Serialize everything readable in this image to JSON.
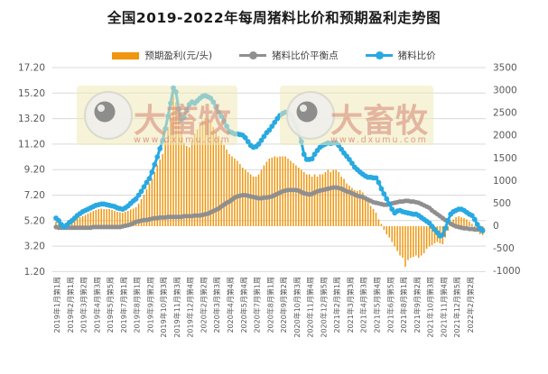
{
  "title": "全国2019-2022年每周猪料比价和预期盈利走势图",
  "legend": {
    "items": [
      {
        "label": "预期盈利(元/头)",
        "type": "bar",
        "color": "#F0960F"
      },
      {
        "label": "猪料比价平衡点",
        "type": "line",
        "color": "#8F8F8F"
      },
      {
        "label": "猪料比价",
        "type": "line",
        "color": "#29A9E1"
      }
    ]
  },
  "watermark": {
    "brand": "大畜牧",
    "url": "www.dxumu.com"
  },
  "chart_data": {
    "type": "combo-bar-line",
    "n_points": 161,
    "x_tick_every": 5,
    "x_tick_labels": [
      "2019年1月第1周",
      "2019年2月第1周",
      "2019年3月第2周",
      "2019年4月第3周",
      "2019年5月第5周",
      "2019年7月第1周",
      "2019年8月第1周",
      "2019年9月第2周",
      "2019年10月第3周",
      "2019年11月第3周",
      "2019年12月第4周",
      "2020年2月第2周",
      "2020年3月第3周",
      "2020年4月第4周",
      "2020年5月第4周",
      "2020年7月第1周",
      "2020年8月第1周",
      "2020年9月第2周",
      "2020年10月第3周",
      "2020年11月第4周",
      "2020年12月第5周",
      "2021年2月第1周",
      "2021年3月第3周",
      "2021年4月第3周",
      "2021年5月第4周",
      "2021年6月第5周",
      "2021年8月第1周",
      "2021年9月第2周",
      "2021年10月第3周",
      "2021年11月第4周",
      "2021年12月第5周",
      "2022年2月第2周"
    ],
    "left_axis": {
      "min": 1.2,
      "max": 17.2,
      "ticks": [
        "17.20",
        "15.20",
        "13.20",
        "11.20",
        "9.20",
        "7.20",
        "5.20",
        "3.20",
        "1.20"
      ]
    },
    "right_axis": {
      "min": -1000,
      "max": 3500,
      "ticks": [
        "3500",
        "3000",
        "2500",
        "2000",
        "1500",
        "1000",
        "500",
        "0",
        "-500",
        "-1000"
      ]
    },
    "grid": true,
    "legend_position": "top",
    "series": [
      {
        "name": "预期盈利(元/头)",
        "type": "bar",
        "axis": "right",
        "color": "#F0960F",
        "values": [
          100,
          60,
          20,
          30,
          80,
          140,
          150,
          170,
          190,
          200,
          220,
          250,
          280,
          310,
          340,
          360,
          380,
          390,
          380,
          380,
          380,
          360,
          340,
          320,
          310,
          300,
          320,
          340,
          370,
          390,
          420,
          500,
          600,
          700,
          820,
          950,
          1050,
          1200,
          1350,
          1480,
          1600,
          1900,
          2200,
          2500,
          2950,
          2750,
          2500,
          2100,
          1850,
          1780,
          1750,
          1900,
          2050,
          2150,
          2250,
          2350,
          2400,
          2380,
          2300,
          2200,
          2100,
          2000,
          1900,
          1800,
          1700,
          1600,
          1550,
          1500,
          1450,
          1380,
          1300,
          1250,
          1200,
          1150,
          1100,
          1100,
          1150,
          1250,
          1350,
          1430,
          1500,
          1520,
          1550,
          1530,
          1550,
          1550,
          1550,
          1500,
          1450,
          1400,
          1350,
          1300,
          1250,
          1200,
          1150,
          1150,
          1100,
          1150,
          1100,
          1150,
          1150,
          1200,
          1250,
          1200,
          1250,
          1250,
          1200,
          1100,
          1050,
          950,
          900,
          850,
          800,
          780,
          800,
          750,
          650,
          550,
          450,
          380,
          300,
          150,
          50,
          -80,
          -180,
          -250,
          -350,
          -450,
          -550,
          -650,
          -700,
          -900,
          -750,
          -700,
          -680,
          -650,
          -700,
          -650,
          -600,
          -500,
          -450,
          -420,
          -380,
          -350,
          -380,
          -400,
          -250,
          -100,
          50,
          150,
          200,
          220,
          200,
          180,
          150,
          100,
          50,
          -50,
          -120,
          -180,
          -200
        ]
      },
      {
        "name": "猪料比价平衡点",
        "type": "line",
        "axis": "left",
        "color": "#8F8F8F",
        "values": [
          4.7,
          4.65,
          4.65,
          4.65,
          4.65,
          4.65,
          4.65,
          4.65,
          4.65,
          4.65,
          4.65,
          4.65,
          4.65,
          4.65,
          4.7,
          4.7,
          4.7,
          4.7,
          4.7,
          4.7,
          4.7,
          4.7,
          4.7,
          4.7,
          4.7,
          4.75,
          4.8,
          4.85,
          4.9,
          5.0,
          5.1,
          5.15,
          5.2,
          5.25,
          5.25,
          5.3,
          5.35,
          5.4,
          5.4,
          5.45,
          5.45,
          5.45,
          5.5,
          5.5,
          5.5,
          5.5,
          5.5,
          5.5,
          5.55,
          5.55,
          5.55,
          5.55,
          5.6,
          5.6,
          5.6,
          5.65,
          5.7,
          5.75,
          5.85,
          5.95,
          6.05,
          6.15,
          6.3,
          6.45,
          6.6,
          6.7,
          6.85,
          7.0,
          7.1,
          7.15,
          7.2,
          7.2,
          7.15,
          7.1,
          7.05,
          7.0,
          6.95,
          6.95,
          7.0,
          7.0,
          7.05,
          7.1,
          7.2,
          7.3,
          7.4,
          7.5,
          7.55,
          7.6,
          7.6,
          7.6,
          7.6,
          7.55,
          7.45,
          7.35,
          7.3,
          7.25,
          7.3,
          7.4,
          7.5,
          7.55,
          7.6,
          7.65,
          7.7,
          7.75,
          7.8,
          7.8,
          7.75,
          7.7,
          7.6,
          7.5,
          7.45,
          7.35,
          7.25,
          7.15,
          7.1,
          7.05,
          6.95,
          6.85,
          6.75,
          6.65,
          6.6,
          6.55,
          6.5,
          6.45,
          6.45,
          6.5,
          6.55,
          6.6,
          6.65,
          6.7,
          6.7,
          6.75,
          6.75,
          6.7,
          6.7,
          6.65,
          6.6,
          6.5,
          6.4,
          6.3,
          6.2,
          6.0,
          5.85,
          5.7,
          5.55,
          5.4,
          5.25,
          5.1,
          4.95,
          4.85,
          4.75,
          4.7,
          4.65,
          4.6,
          4.6,
          4.55,
          4.55,
          4.5,
          4.5,
          4.5,
          4.5
        ]
      },
      {
        "name": "猪料比价",
        "type": "line",
        "axis": "left",
        "color": "#29A9E1",
        "values": [
          5.4,
          5.2,
          4.9,
          4.7,
          4.85,
          5.05,
          5.2,
          5.4,
          5.6,
          5.75,
          5.9,
          6.0,
          6.1,
          6.2,
          6.3,
          6.4,
          6.45,
          6.5,
          6.5,
          6.45,
          6.4,
          6.35,
          6.3,
          6.2,
          6.15,
          6.1,
          6.2,
          6.35,
          6.55,
          6.75,
          6.9,
          7.2,
          7.5,
          7.85,
          8.2,
          8.5,
          9.0,
          9.6,
          10.2,
          10.85,
          11.5,
          12.4,
          13.4,
          14.4,
          15.6,
          15.3,
          14.0,
          13.1,
          13.3,
          13.9,
          14.3,
          14.5,
          14.4,
          14.6,
          14.8,
          14.95,
          15.0,
          14.9,
          14.8,
          14.5,
          14.1,
          13.7,
          13.4,
          13.0,
          12.6,
          12.2,
          12.1,
          12.0,
          12.0,
          11.95,
          11.9,
          11.7,
          11.4,
          11.1,
          10.95,
          11.0,
          11.2,
          11.5,
          11.8,
          12.1,
          12.3,
          12.6,
          12.9,
          13.2,
          13.45,
          13.6,
          13.7,
          13.7,
          13.5,
          13.1,
          12.6,
          12.1,
          11.4,
          10.4,
          10.0,
          10.0,
          10.05,
          10.4,
          10.7,
          10.95,
          11.1,
          11.2,
          11.3,
          11.25,
          11.3,
          11.3,
          11.1,
          10.8,
          10.5,
          10.25,
          10.0,
          9.7,
          9.4,
          9.2,
          9.0,
          8.85,
          8.7,
          8.6,
          8.6,
          8.55,
          8.55,
          8.2,
          7.7,
          7.3,
          6.9,
          6.5,
          6.1,
          5.8,
          5.95,
          6.0,
          5.9,
          5.85,
          5.8,
          5.75,
          5.7,
          5.7,
          5.6,
          5.45,
          5.3,
          5.15,
          5.0,
          4.75,
          4.5,
          4.25,
          4.0,
          4.1,
          4.6,
          5.2,
          5.7,
          5.9,
          6.0,
          6.1,
          6.1,
          6.0,
          5.85,
          5.7,
          5.6,
          5.3,
          4.9,
          4.6,
          4.4
        ]
      }
    ]
  },
  "style": {
    "gridline_color": "#D9D9D9",
    "axis_text_color": "#595959",
    "watermark_bg": "#EFE9B8",
    "watermark_text_color": "#D98C7A"
  }
}
